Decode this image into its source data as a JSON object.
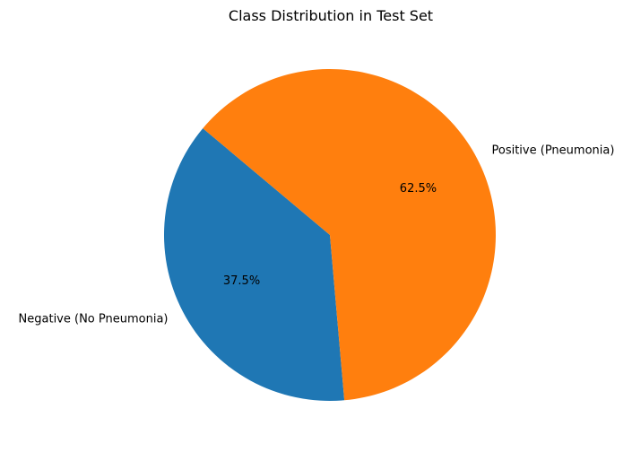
{
  "chart_data": {
    "type": "pie",
    "title": "Class Distribution in Test Set",
    "labels": [
      "Negative (No Pneumonia)",
      "Positive (Pneumonia)"
    ],
    "values": [
      37.5,
      62.5
    ],
    "percent_labels": [
      "37.5%",
      "62.5%"
    ],
    "colors": [
      "#1f77b4",
      "#ff7f0e"
    ],
    "start_angle_deg": 140,
    "legend": "none"
  }
}
